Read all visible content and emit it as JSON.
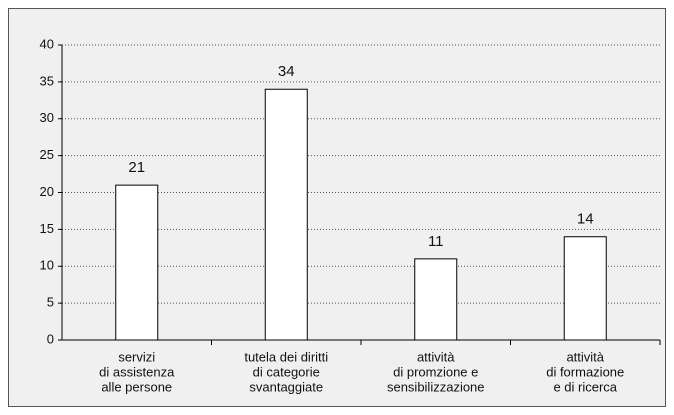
{
  "chart_data": {
    "type": "bar",
    "categories": [
      [
        "servizi",
        "di assistenza",
        "alle persone"
      ],
      [
        "tutela dei diritti",
        "di categorie",
        "svantaggiate"
      ],
      [
        "attività",
        "di promzione e",
        "sensibilizzazione"
      ],
      [
        "attività",
        "di formazione",
        "e di ricerca"
      ]
    ],
    "values": [
      21,
      34,
      11,
      14
    ],
    "color": "#ffffff",
    "ylim": [
      0,
      40
    ],
    "yticks": [
      0,
      5,
      10,
      15,
      20,
      25,
      30,
      35,
      40
    ],
    "grid": true
  }
}
